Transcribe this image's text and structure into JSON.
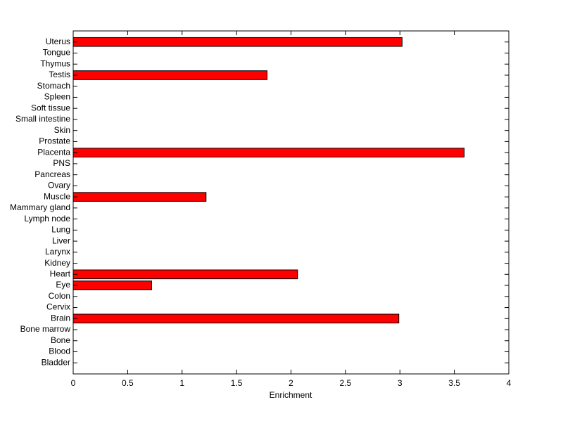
{
  "chart_data": {
    "type": "barh",
    "xlabel": "Enrichment",
    "categories": [
      "Bladder",
      "Blood",
      "Bone",
      "Bone marrow",
      "Brain",
      "Cervix",
      "Colon",
      "Eye",
      "Heart",
      "Kidney",
      "Larynx",
      "Liver",
      "Lung",
      "Lymph node",
      "Mammary gland",
      "Muscle",
      "Ovary",
      "Pancreas",
      "PNS",
      "Placenta",
      "Prostate",
      "Skin",
      "Small intestine",
      "Soft tissue",
      "Spleen",
      "Stomach",
      "Testis",
      "Thymus",
      "Tongue",
      "Uterus"
    ],
    "values": [
      0,
      0,
      0,
      0,
      2.99,
      0,
      0,
      0.72,
      2.06,
      0,
      0,
      0,
      0,
      0,
      0,
      1.22,
      0,
      0,
      0,
      3.59,
      0,
      0,
      0,
      0,
      0,
      0,
      1.78,
      0,
      0,
      3.02
    ],
    "color": "#ff0000",
    "xlim": [
      0,
      4
    ],
    "xticks": [
      0,
      0.5,
      1,
      1.5,
      2,
      2.5,
      3,
      3.5,
      4
    ]
  }
}
